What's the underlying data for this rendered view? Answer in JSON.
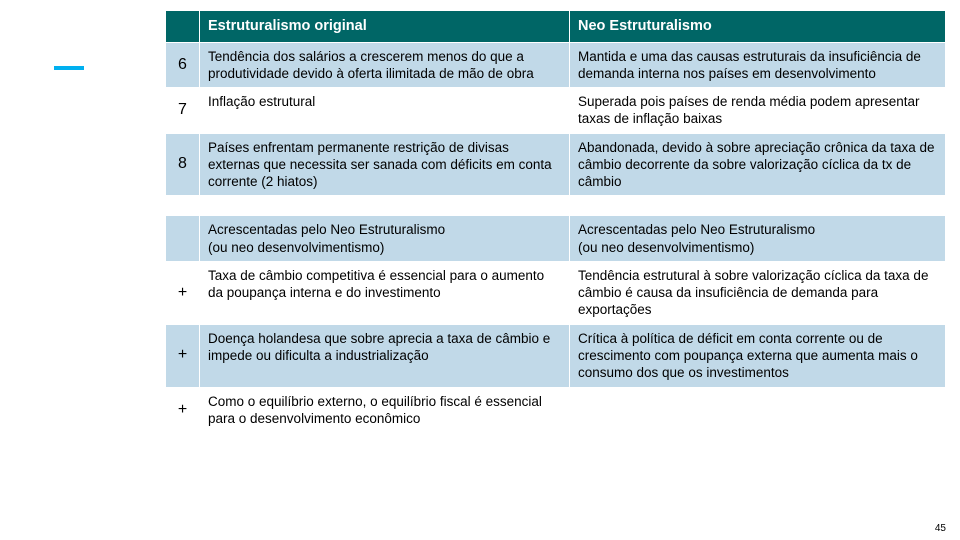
{
  "accent_color": "#00b0f0",
  "header_bg": "#006666",
  "header_fg": "#ffffff",
  "alt_row_bg": "#c1d9e8",
  "headers": {
    "num": "",
    "col1": "Estruturalismo original",
    "col2": "Neo  Estruturalismo"
  },
  "rows": [
    {
      "num": "6",
      "alt": true,
      "c1": "Tendência dos salários a crescerem menos do que a produtividade devido à oferta ilimitada de mão de obra",
      "c2": "Mantida e uma das causas estruturais da insuficiência de demanda interna nos países em desenvolvimento"
    },
    {
      "num": "7",
      "alt": false,
      "c1": "Inflação estrutural",
      "c2": "Superada pois países de renda média podem apresentar taxas de inflação baixas"
    },
    {
      "num": "8",
      "alt": true,
      "c1": "Países enfrentam permanente restrição de divisas externas que necessita ser sanada com déficits em conta corrente (2 hiatos)",
      "c2": "Abandonada, devido à sobre apreciação crônica da taxa de câmbio decorrente da sobre valorização cíclica da tx de câmbio"
    },
    {
      "spacer": true,
      "alt": false
    },
    {
      "num": "",
      "alt": true,
      "c1": "Acrescentadas pelo Neo Estruturalismo\n(ou neo desenvolvimentismo)",
      "c2": "Acrescentadas pelo Neo Estruturalismo\n(ou neo desenvolvimentismo)"
    },
    {
      "num": "+",
      "alt": false,
      "c1": "Taxa de câmbio competitiva é essencial para o aumento da poupança interna e do investimento",
      "c2": "Tendência estrutural à sobre valorização cíclica da taxa de câmbio é causa da insuficiência de demanda para exportações"
    },
    {
      "num": "+",
      "alt": true,
      "c1": "Doença holandesa que sobre aprecia a taxa de câmbio e impede ou dificulta a industrialização",
      "c2": "Crítica à política de déficit em conta corrente ou de crescimento com poupança externa que aumenta mais o consumo dos que os investimentos"
    },
    {
      "num": "+",
      "alt": false,
      "c1": "Como o equilíbrio externo, o equilíbrio fiscal é essencial para o desenvolvimento econômico",
      "c2": ""
    }
  ],
  "page_number": "45"
}
